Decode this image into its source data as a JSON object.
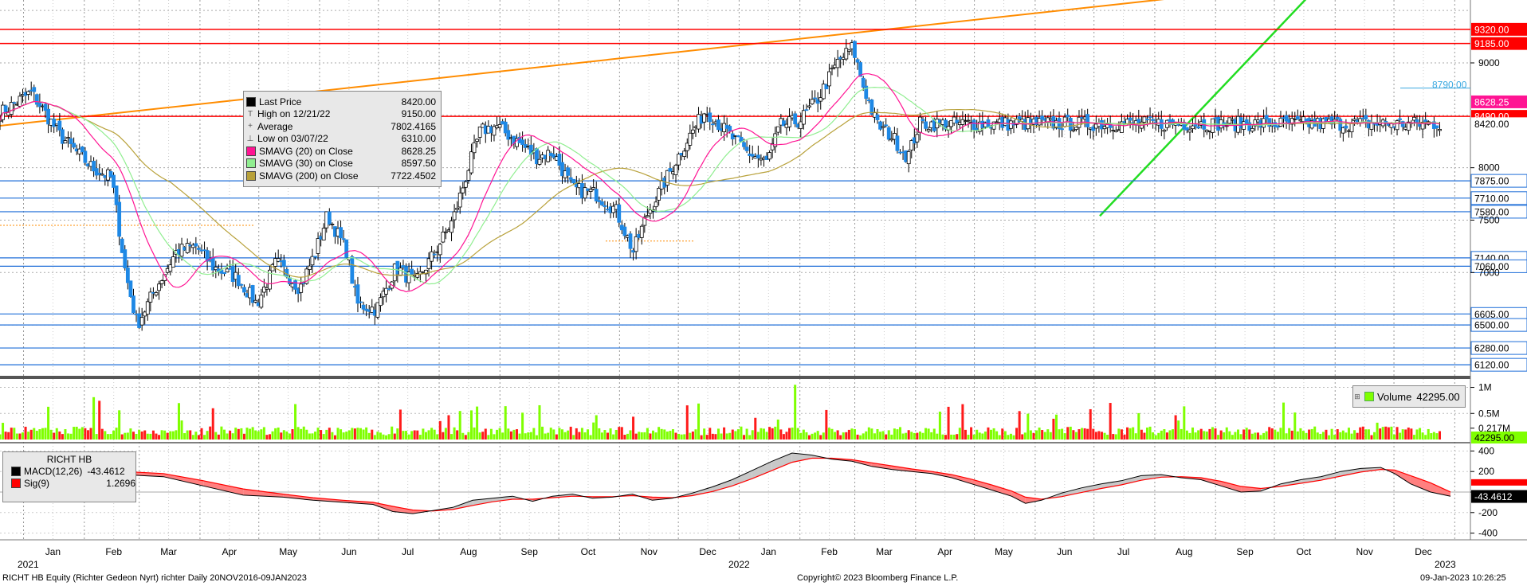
{
  "chart_data": {
    "type": "candlestick",
    "security": "RICHT HB",
    "yaxis": {
      "ticks": [
        7000,
        7500,
        8000,
        9000
      ],
      "ylim": [
        6030,
        9600
      ]
    },
    "xaxis": {
      "months": [
        "Jan",
        "Feb",
        "Mar",
        "Apr",
        "May",
        "Jun",
        "Jul",
        "Aug",
        "Sep",
        "Oct",
        "Nov",
        "Dec"
      ],
      "years": [
        "2021",
        "2022",
        "2023"
      ]
    },
    "level_lines": [
      {
        "value": 9320,
        "label": "9320.00",
        "color": "#ff0000",
        "style": "solid"
      },
      {
        "value": 9185,
        "label": "9185.00",
        "color": "#ff0000",
        "style": "solid"
      },
      {
        "value": 8790,
        "label": "8790.00",
        "color": "#3aa8e0",
        "style": "text"
      },
      {
        "value": 8628.25,
        "label": "8628.25",
        "color": "#ff1493",
        "style": "tag"
      },
      {
        "value": 8490,
        "label": "8490.00",
        "color": "#ff0000",
        "style": "solid"
      },
      {
        "value": 8420,
        "label": "8420.00",
        "color": "#000000",
        "style": "price"
      },
      {
        "value": 7875,
        "label": "7875.00",
        "color": "#1e6ed8",
        "style": "solid"
      },
      {
        "value": 7710,
        "label": "7710.00",
        "color": "#1e6ed8",
        "style": "solid"
      },
      {
        "value": 7580,
        "label": "7580.00",
        "color": "#1e6ed8",
        "style": "solid"
      },
      {
        "value": 7140,
        "label": "7140.00",
        "color": "#1e6ed8",
        "style": "solid"
      },
      {
        "value": 7060,
        "label": "7060.00",
        "color": "#1e6ed8",
        "style": "solid"
      },
      {
        "value": 6605,
        "label": "6605.00",
        "color": "#1e6ed8",
        "style": "solid"
      },
      {
        "value": 6500,
        "label": "6500.00",
        "color": "#1e6ed8",
        "style": "solid"
      },
      {
        "value": 6280,
        "label": "6280.00",
        "color": "#1e6ed8",
        "style": "solid"
      },
      {
        "value": 6120,
        "label": "6120.00",
        "color": "#1e6ed8",
        "style": "solid"
      }
    ],
    "price_path": [
      [
        "2020-12-20",
        8520
      ],
      [
        "2021-01-05",
        8720
      ],
      [
        "2021-01-20",
        8300
      ],
      [
        "2021-02-05",
        8000
      ],
      [
        "2021-02-15",
        7900
      ],
      [
        "2021-02-22",
        7000
      ],
      [
        "2021-02-28",
        6500
      ],
      [
        "2021-03-08",
        6800
      ],
      [
        "2021-03-20",
        7200
      ],
      [
        "2021-03-30",
        7250
      ],
      [
        "2021-04-08",
        7050
      ],
      [
        "2021-04-20",
        6950
      ],
      [
        "2021-04-30",
        6700
      ],
      [
        "2021-05-10",
        7100
      ],
      [
        "2021-05-22",
        6850
      ],
      [
        "2021-05-30",
        7200
      ],
      [
        "2021-06-05",
        7550
      ],
      [
        "2021-06-15",
        7200
      ],
      [
        "2021-06-20",
        6700
      ],
      [
        "2021-06-30",
        6650
      ],
      [
        "2021-07-10",
        7050
      ],
      [
        "2021-07-20",
        6900
      ],
      [
        "2021-07-30",
        7200
      ],
      [
        "2021-08-08",
        7500
      ],
      [
        "2021-08-16",
        8000
      ],
      [
        "2021-08-22",
        8350
      ],
      [
        "2021-08-30",
        8400
      ],
      [
        "2021-09-10",
        8250
      ],
      [
        "2021-09-20",
        8100
      ],
      [
        "2021-09-28",
        8150
      ],
      [
        "2021-10-08",
        7800
      ],
      [
        "2021-10-20",
        7750
      ],
      [
        "2021-10-30",
        7600
      ],
      [
        "2021-11-08",
        7200
      ],
      [
        "2021-11-15",
        7550
      ],
      [
        "2021-11-25",
        7900
      ],
      [
        "2021-12-05",
        8250
      ],
      [
        "2021-12-15",
        8550
      ],
      [
        "2021-12-25",
        8350
      ],
      [
        "2022-01-05",
        8150
      ],
      [
        "2022-01-15",
        8050
      ],
      [
        "2022-01-22",
        8400
      ],
      [
        "2022-02-01",
        8450
      ],
      [
        "2022-02-10",
        8650
      ],
      [
        "2022-02-20",
        9000
      ],
      [
        "2022-02-28",
        9150
      ],
      [
        "2022-03-05",
        8800
      ],
      [
        "2022-03-12",
        8420
      ],
      [
        "2022-03-20",
        8300
      ],
      [
        "2022-03-28",
        8100
      ],
      [
        "2022-04-03",
        8420
      ]
    ],
    "bullish_days": [
      [
        1,
        24
      ],
      [
        6,
        30
      ],
      [
        8,
        33
      ],
      [
        12,
        40
      ],
      [
        16,
        46
      ],
      [
        18,
        49
      ],
      [
        21,
        55
      ],
      [
        25,
        60
      ],
      [
        28,
        66
      ],
      [
        31,
        73
      ],
      [
        36,
        80
      ],
      [
        37,
        82
      ],
      [
        42,
        88
      ],
      [
        44,
        90
      ],
      [
        46,
        93
      ],
      [
        49,
        96
      ]
    ],
    "ma_series": [
      {
        "name": "SMAVG (20)  on Close",
        "color": "#ff1493"
      },
      {
        "name": "SMAVG (30)  on Close",
        "color": "#90ee90"
      },
      {
        "name": "SMAVG (200)  on Close",
        "color": "#b8a13a"
      }
    ],
    "legend": [
      {
        "label": "Last Price",
        "value": "8420.00",
        "swatch": "#000000",
        "icon": ""
      },
      {
        "label": "High on 12/21/22",
        "value": "9150.00",
        "swatch": "",
        "icon": "T"
      },
      {
        "label": "Average",
        "value": "7802.4165",
        "swatch": "",
        "icon": "+"
      },
      {
        "label": "Low on 03/07/22",
        "value": "6310.00",
        "swatch": "",
        "icon": "⊥"
      },
      {
        "label": "SMAVG (20)  on Close",
        "value": "8628.25",
        "swatch": "#ff1493",
        "icon": ""
      },
      {
        "label": "SMAVG (30)  on Close",
        "value": "8597.50",
        "swatch": "#90ee90",
        "icon": ""
      },
      {
        "label": "SMAVG (200)  on Close",
        "value": "7722.4502",
        "swatch": "#b8a13a",
        "icon": ""
      }
    ],
    "volume": {
      "legend_label": "Volume",
      "legend_value": "42295.00",
      "ticks": [
        "1M",
        "0.5M",
        "0.217M"
      ],
      "last_label": "42295.00"
    },
    "macd": {
      "title": "RICHT HB",
      "macd_label": "MACD(12,26)",
      "macd_value": "-43.4612",
      "sig_label": "Sig(9)",
      "sig_value": "1.2696",
      "ticks": [
        "400",
        "200",
        "0",
        "-200",
        "-400"
      ],
      "last_label": "-43.4612",
      "macd_path": [
        [
          0,
          170
        ],
        [
          20,
          150
        ],
        [
          40,
          60
        ],
        [
          60,
          -30
        ],
        [
          80,
          -50
        ],
        [
          95,
          -80
        ],
        [
          110,
          -100
        ],
        [
          125,
          -120
        ],
        [
          135,
          -190
        ],
        [
          145,
          -210
        ],
        [
          155,
          -180
        ],
        [
          165,
          -150
        ],
        [
          175,
          -80
        ],
        [
          185,
          -60
        ],
        [
          195,
          -40
        ],
        [
          205,
          -90
        ],
        [
          215,
          -40
        ],
        [
          225,
          -20
        ],
        [
          235,
          -60
        ],
        [
          245,
          -50
        ],
        [
          255,
          -20
        ],
        [
          265,
          -80
        ],
        [
          275,
          -60
        ],
        [
          285,
          -10
        ],
        [
          295,
          50
        ],
        [
          305,
          120
        ],
        [
          315,
          210
        ],
        [
          325,
          300
        ],
        [
          335,
          380
        ],
        [
          345,
          360
        ],
        [
          355,
          320
        ],
        [
          365,
          300
        ],
        [
          375,
          250
        ],
        [
          385,
          220
        ],
        [
          395,
          200
        ],
        [
          405,
          180
        ],
        [
          415,
          140
        ],
        [
          425,
          80
        ],
        [
          435,
          20
        ],
        [
          445,
          -40
        ],
        [
          452,
          -110
        ],
        [
          460,
          -80
        ],
        [
          470,
          -10
        ],
        [
          480,
          40
        ],
        [
          490,
          80
        ],
        [
          500,
          110
        ],
        [
          510,
          160
        ],
        [
          520,
          170
        ],
        [
          530,
          140
        ],
        [
          540,
          120
        ],
        [
          550,
          60
        ],
        [
          560,
          0
        ],
        [
          570,
          10
        ],
        [
          580,
          80
        ],
        [
          590,
          120
        ],
        [
          600,
          150
        ],
        [
          610,
          200
        ],
        [
          620,
          230
        ],
        [
          630,
          240
        ],
        [
          637,
          180
        ],
        [
          645,
          80
        ],
        [
          655,
          0
        ],
        [
          665,
          -40
        ]
      ],
      "sig_path": [
        [
          0,
          200
        ],
        [
          20,
          180
        ],
        [
          40,
          110
        ],
        [
          60,
          30
        ],
        [
          80,
          -20
        ],
        [
          95,
          -55
        ],
        [
          110,
          -80
        ],
        [
          125,
          -100
        ],
        [
          135,
          -140
        ],
        [
          145,
          -175
        ],
        [
          155,
          -185
        ],
        [
          165,
          -170
        ],
        [
          175,
          -130
        ],
        [
          185,
          -95
        ],
        [
          195,
          -70
        ],
        [
          205,
          -70
        ],
        [
          215,
          -55
        ],
        [
          225,
          -40
        ],
        [
          235,
          -45
        ],
        [
          245,
          -45
        ],
        [
          255,
          -35
        ],
        [
          265,
          -50
        ],
        [
          275,
          -55
        ],
        [
          285,
          -35
        ],
        [
          295,
          5
        ],
        [
          305,
          60
        ],
        [
          315,
          130
        ],
        [
          325,
          210
        ],
        [
          335,
          290
        ],
        [
          345,
          330
        ],
        [
          355,
          330
        ],
        [
          365,
          315
        ],
        [
          375,
          285
        ],
        [
          385,
          255
        ],
        [
          395,
          225
        ],
        [
          405,
          200
        ],
        [
          415,
          170
        ],
        [
          425,
          125
        ],
        [
          435,
          70
        ],
        [
          445,
          10
        ],
        [
          452,
          -50
        ],
        [
          460,
          -70
        ],
        [
          470,
          -45
        ],
        [
          480,
          -5
        ],
        [
          490,
          35
        ],
        [
          500,
          70
        ],
        [
          510,
          115
        ],
        [
          520,
          145
        ],
        [
          530,
          150
        ],
        [
          540,
          140
        ],
        [
          550,
          105
        ],
        [
          560,
          55
        ],
        [
          570,
          35
        ],
        [
          580,
          55
        ],
        [
          590,
          85
        ],
        [
          600,
          115
        ],
        [
          610,
          155
        ],
        [
          620,
          195
        ],
        [
          630,
          220
        ],
        [
          637,
          215
        ],
        [
          645,
          160
        ],
        [
          655,
          90
        ],
        [
          665,
          1
        ]
      ]
    }
  },
  "footer": {
    "left": "RICHT HB Equity (Richter Gedeon Nyrt) richter  Daily 20NOV2016-09JAN2023",
    "center": "Copyright© 2023 Bloomberg Finance L.P.",
    "right": "09-Jan-2023 10:26:25"
  }
}
